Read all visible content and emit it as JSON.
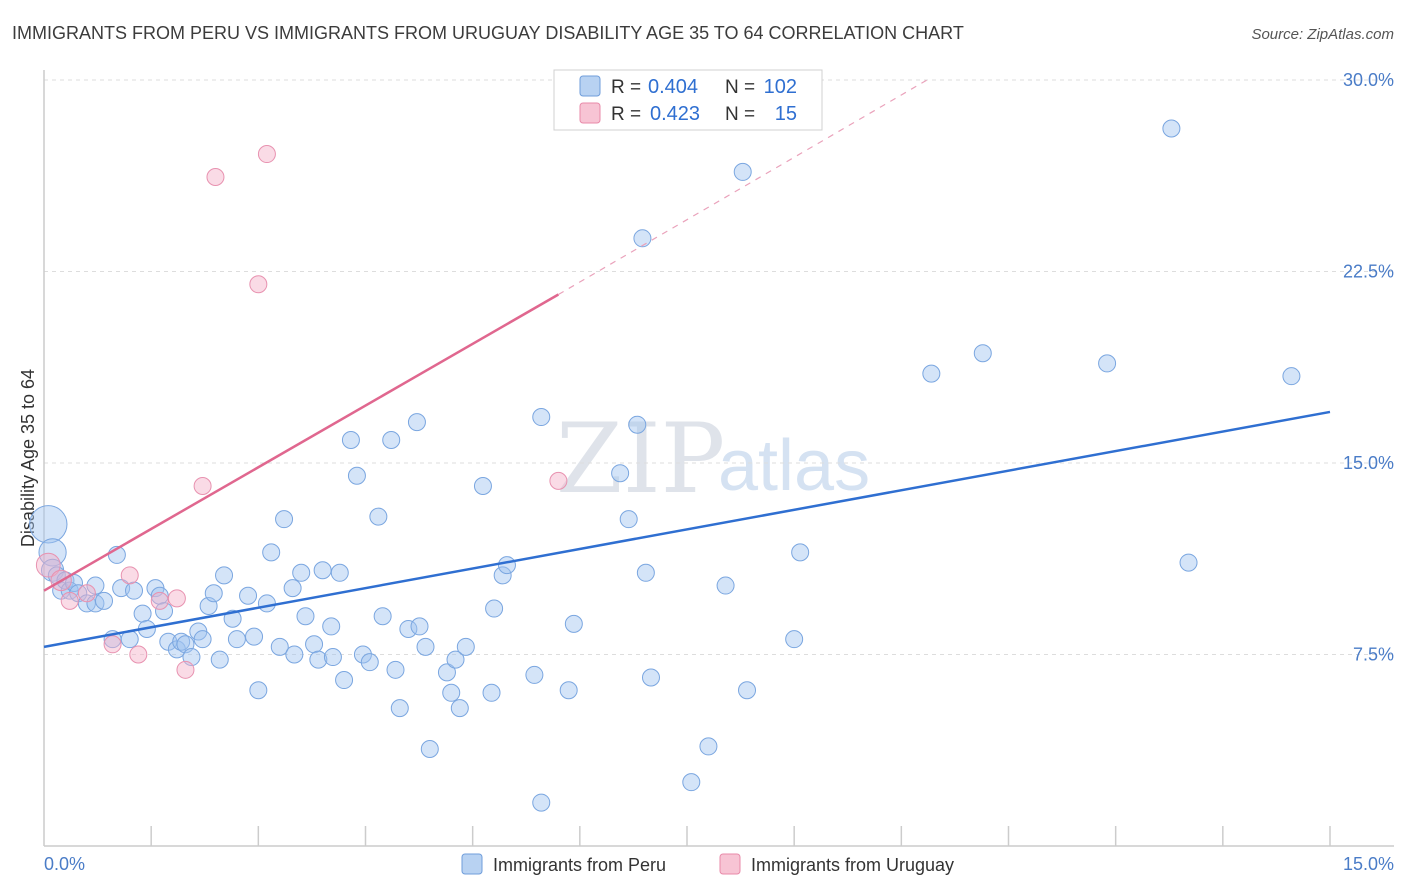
{
  "chart_data": {
    "type": "scatter",
    "title": "IMMIGRANTS FROM PERU VS IMMIGRANTS FROM URUGUAY DISABILITY AGE 35 TO 64 CORRELATION CHART",
    "source": "Source: ZipAtlas.com",
    "xlabel": "",
    "ylabel": "Disability Age 35 to 64",
    "xlim": [
      0,
      15
    ],
    "ylim": [
      0,
      30
    ],
    "x_tick_labels": {
      "min": "0.0%",
      "max": "15.0%"
    },
    "y_ticks": [
      {
        "value": 7.5,
        "label": "7.5%"
      },
      {
        "value": 15,
        "label": "15.0%"
      },
      {
        "value": 22.5,
        "label": "22.5%"
      },
      {
        "value": 30,
        "label": "30.0%"
      }
    ],
    "grid": true,
    "watermark": {
      "part1": "ZIP",
      "part2": "atlas"
    },
    "legend": [
      {
        "r_label": "R =",
        "r_value": "0.404",
        "n_label": "N =",
        "n_value": "102"
      },
      {
        "r_label": "R =",
        "r_value": "0.423",
        "n_label": "N =",
        "n_value": "15"
      }
    ],
    "series": [
      {
        "name": "Immigrants from Peru",
        "color": "#8ab4e8",
        "line_color": "#2f6fd1",
        "trend": {
          "x": [
            0.0,
            15.0
          ],
          "y": [
            7.8,
            17.0
          ]
        },
        "points": [
          {
            "x": 0.05,
            "y": 12.6,
            "s": 2.2
          },
          {
            "x": 0.1,
            "y": 11.5,
            "s": 1.6
          },
          {
            "x": 0.1,
            "y": 10.8,
            "s": 1.3
          },
          {
            "x": 0.15,
            "y": 10.6,
            "s": 1
          },
          {
            "x": 0.2,
            "y": 10.0,
            "s": 1
          },
          {
            "x": 0.25,
            "y": 10.4,
            "s": 1
          },
          {
            "x": 0.3,
            "y": 10.0,
            "s": 1
          },
          {
            "x": 0.35,
            "y": 10.3,
            "s": 1
          },
          {
            "x": 0.4,
            "y": 9.9,
            "s": 1
          },
          {
            "x": 0.5,
            "y": 9.5,
            "s": 1
          },
          {
            "x": 0.6,
            "y": 10.2,
            "s": 1
          },
          {
            "x": 0.6,
            "y": 9.5,
            "s": 1
          },
          {
            "x": 0.7,
            "y": 9.6,
            "s": 1
          },
          {
            "x": 0.8,
            "y": 8.1,
            "s": 1
          },
          {
            "x": 0.85,
            "y": 11.4,
            "s": 1
          },
          {
            "x": 0.9,
            "y": 10.1,
            "s": 1
          },
          {
            "x": 1.0,
            "y": 8.1,
            "s": 1
          },
          {
            "x": 1.05,
            "y": 10.0,
            "s": 1
          },
          {
            "x": 1.15,
            "y": 9.1,
            "s": 1
          },
          {
            "x": 1.2,
            "y": 8.5,
            "s": 1
          },
          {
            "x": 1.3,
            "y": 10.1,
            "s": 1
          },
          {
            "x": 1.35,
            "y": 9.8,
            "s": 1
          },
          {
            "x": 1.4,
            "y": 9.2,
            "s": 1
          },
          {
            "x": 1.45,
            "y": 8.0,
            "s": 1
          },
          {
            "x": 1.55,
            "y": 7.7,
            "s": 1
          },
          {
            "x": 1.6,
            "y": 8.0,
            "s": 1
          },
          {
            "x": 1.65,
            "y": 7.9,
            "s": 1
          },
          {
            "x": 1.72,
            "y": 7.4,
            "s": 1
          },
          {
            "x": 1.8,
            "y": 8.4,
            "s": 1
          },
          {
            "x": 1.85,
            "y": 8.1,
            "s": 1
          },
          {
            "x": 1.92,
            "y": 9.4,
            "s": 1
          },
          {
            "x": 1.98,
            "y": 9.9,
            "s": 1
          },
          {
            "x": 2.05,
            "y": 7.3,
            "s": 1
          },
          {
            "x": 2.1,
            "y": 10.6,
            "s": 1
          },
          {
            "x": 2.2,
            "y": 8.9,
            "s": 1
          },
          {
            "x": 2.25,
            "y": 8.1,
            "s": 1
          },
          {
            "x": 2.38,
            "y": 9.8,
            "s": 1
          },
          {
            "x": 2.45,
            "y": 8.2,
            "s": 1
          },
          {
            "x": 2.5,
            "y": 6.1,
            "s": 1
          },
          {
            "x": 2.6,
            "y": 9.5,
            "s": 1
          },
          {
            "x": 2.65,
            "y": 11.5,
            "s": 1
          },
          {
            "x": 2.75,
            "y": 7.8,
            "s": 1
          },
          {
            "x": 2.8,
            "y": 12.8,
            "s": 1
          },
          {
            "x": 2.9,
            "y": 10.1,
            "s": 1
          },
          {
            "x": 2.92,
            "y": 7.5,
            "s": 1
          },
          {
            "x": 3.0,
            "y": 10.7,
            "s": 1
          },
          {
            "x": 3.05,
            "y": 9.0,
            "s": 1
          },
          {
            "x": 3.15,
            "y": 7.9,
            "s": 1
          },
          {
            "x": 3.2,
            "y": 7.3,
            "s": 1
          },
          {
            "x": 3.25,
            "y": 10.8,
            "s": 1
          },
          {
            "x": 3.35,
            "y": 8.6,
            "s": 1
          },
          {
            "x": 3.37,
            "y": 7.4,
            "s": 1
          },
          {
            "x": 3.45,
            "y": 10.7,
            "s": 1
          },
          {
            "x": 3.5,
            "y": 6.5,
            "s": 1
          },
          {
            "x": 3.58,
            "y": 15.9,
            "s": 1
          },
          {
            "x": 3.65,
            "y": 14.5,
            "s": 1
          },
          {
            "x": 3.72,
            "y": 7.5,
            "s": 1
          },
          {
            "x": 3.8,
            "y": 7.2,
            "s": 1
          },
          {
            "x": 3.9,
            "y": 12.9,
            "s": 1
          },
          {
            "x": 3.95,
            "y": 9.0,
            "s": 1
          },
          {
            "x": 4.05,
            "y": 15.9,
            "s": 1
          },
          {
            "x": 4.1,
            "y": 6.9,
            "s": 1
          },
          {
            "x": 4.15,
            "y": 5.4,
            "s": 1
          },
          {
            "x": 4.25,
            "y": 8.5,
            "s": 1
          },
          {
            "x": 4.35,
            "y": 16.6,
            "s": 1
          },
          {
            "x": 4.38,
            "y": 8.6,
            "s": 1
          },
          {
            "x": 4.45,
            "y": 7.8,
            "s": 1
          },
          {
            "x": 4.5,
            "y": 3.8,
            "s": 1
          },
          {
            "x": 4.7,
            "y": 6.8,
            "s": 1
          },
          {
            "x": 4.75,
            "y": 6.0,
            "s": 1
          },
          {
            "x": 4.8,
            "y": 7.3,
            "s": 1
          },
          {
            "x": 4.85,
            "y": 5.4,
            "s": 1
          },
          {
            "x": 4.92,
            "y": 7.8,
            "s": 1
          },
          {
            "x": 5.12,
            "y": 14.1,
            "s": 1
          },
          {
            "x": 5.22,
            "y": 6.0,
            "s": 1
          },
          {
            "x": 5.25,
            "y": 9.3,
            "s": 1
          },
          {
            "x": 5.35,
            "y": 10.6,
            "s": 1
          },
          {
            "x": 5.4,
            "y": 11.0,
            "s": 1
          },
          {
            "x": 5.72,
            "y": 6.7,
            "s": 1
          },
          {
            "x": 5.8,
            "y": 16.8,
            "s": 1
          },
          {
            "x": 5.8,
            "y": 1.7,
            "s": 1
          },
          {
            "x": 6.12,
            "y": 6.1,
            "s": 1
          },
          {
            "x": 6.18,
            "y": 8.7,
            "s": 1
          },
          {
            "x": 6.72,
            "y": 14.6,
            "s": 1
          },
          {
            "x": 6.82,
            "y": 12.8,
            "s": 1
          },
          {
            "x": 6.92,
            "y": 16.5,
            "s": 1
          },
          {
            "x": 6.98,
            "y": 23.8,
            "s": 1
          },
          {
            "x": 7.02,
            "y": 10.7,
            "s": 1
          },
          {
            "x": 7.08,
            "y": 6.6,
            "s": 1
          },
          {
            "x": 7.55,
            "y": 2.5,
            "s": 1
          },
          {
            "x": 7.75,
            "y": 3.9,
            "s": 1
          },
          {
            "x": 7.95,
            "y": 10.2,
            "s": 1
          },
          {
            "x": 8.15,
            "y": 26.4,
            "s": 1
          },
          {
            "x": 8.2,
            "y": 6.1,
            "s": 1
          },
          {
            "x": 8.75,
            "y": 8.1,
            "s": 1
          },
          {
            "x": 8.82,
            "y": 11.5,
            "s": 1
          },
          {
            "x": 10.35,
            "y": 18.5,
            "s": 1
          },
          {
            "x": 10.95,
            "y": 19.3,
            "s": 1
          },
          {
            "x": 12.4,
            "y": 18.9,
            "s": 1
          },
          {
            "x": 13.15,
            "y": 28.1,
            "s": 1
          },
          {
            "x": 13.35,
            "y": 11.1,
            "s": 1
          },
          {
            "x": 14.55,
            "y": 18.4,
            "s": 1
          }
        ]
      },
      {
        "name": "Immigrants from Uruguay",
        "color": "#f2a7bf",
        "line_color": "#e0678f",
        "trend": {
          "x": [
            0.0,
            6.0
          ],
          "y": [
            10.0,
            21.6
          ]
        },
        "trend_dashed": {
          "x": [
            6.0,
            10.3
          ],
          "y": [
            21.6,
            30.0
          ]
        },
        "points": [
          {
            "x": 0.05,
            "y": 11.0,
            "s": 1.4
          },
          {
            "x": 0.2,
            "y": 10.4,
            "s": 1.2
          },
          {
            "x": 0.3,
            "y": 9.6,
            "s": 1
          },
          {
            "x": 0.5,
            "y": 9.9,
            "s": 1
          },
          {
            "x": 0.8,
            "y": 7.9,
            "s": 1
          },
          {
            "x": 1.0,
            "y": 10.6,
            "s": 1
          },
          {
            "x": 1.1,
            "y": 7.5,
            "s": 1
          },
          {
            "x": 1.35,
            "y": 9.6,
            "s": 1
          },
          {
            "x": 1.55,
            "y": 9.7,
            "s": 1
          },
          {
            "x": 1.65,
            "y": 6.9,
            "s": 1
          },
          {
            "x": 1.85,
            "y": 14.1,
            "s": 1
          },
          {
            "x": 2.0,
            "y": 26.2,
            "s": 1
          },
          {
            "x": 2.5,
            "y": 22.0,
            "s": 1
          },
          {
            "x": 2.6,
            "y": 27.1,
            "s": 1
          },
          {
            "x": 6.0,
            "y": 14.3,
            "s": 1
          }
        ]
      }
    ]
  }
}
